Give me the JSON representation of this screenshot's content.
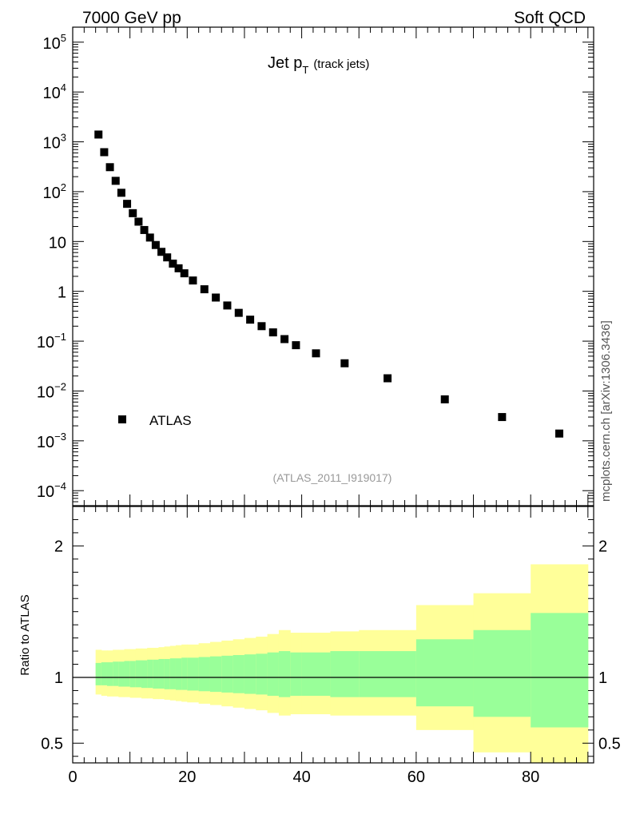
{
  "header": {
    "energy_label": "7000 GeV pp",
    "process_label": "Soft QCD",
    "side_label": "mcplots.cern.ch [arXiv:1306.3436]"
  },
  "chart_data": [
    {
      "type": "scatter",
      "panel": "main",
      "title_main": "Jet p",
      "title_sub": "T",
      "title_note": "(track jets)",
      "yscale": "log",
      "ylim": [
        5e-05,
        200000
      ],
      "xlim": [
        0,
        91
      ],
      "ytick_labels": [
        {
          "value": 100000,
          "base": "10",
          "exp": "5"
        },
        {
          "value": 10000,
          "base": "10",
          "exp": "4"
        },
        {
          "value": 1000,
          "base": "10",
          "exp": "3"
        },
        {
          "value": 100,
          "base": "10",
          "exp": "2"
        },
        {
          "value": 10,
          "base": "10",
          "exp": ""
        },
        {
          "value": 1,
          "base": "1",
          "exp": ""
        },
        {
          "value": 0.1,
          "base": "10",
          "exp": "−1"
        },
        {
          "value": 0.01,
          "base": "10",
          "exp": "−2"
        },
        {
          "value": 0.001,
          "base": "10",
          "exp": "−3"
        },
        {
          "value": 0.0001,
          "base": "10",
          "exp": "−4"
        }
      ],
      "series": [
        {
          "name": "ATLAS",
          "marker": "square",
          "color": "#000000",
          "x": [
            4.5,
            5.5,
            6.5,
            7.5,
            8.5,
            9.5,
            10.5,
            11.5,
            12.5,
            13.5,
            14.5,
            15.5,
            16.5,
            17.5,
            18.5,
            19.5,
            21,
            23,
            25,
            27,
            29,
            31,
            33,
            35,
            37,
            39,
            42.5,
            47.5,
            55,
            65,
            75,
            85
          ],
          "y": [
            1400,
            620,
            310,
            165,
            95,
            57,
            37,
            25,
            17,
            12,
            8.5,
            6.2,
            4.8,
            3.6,
            2.9,
            2.3,
            1.65,
            1.1,
            0.75,
            0.52,
            0.37,
            0.27,
            0.2,
            0.15,
            0.11,
            0.083,
            0.057,
            0.036,
            0.018,
            0.0068,
            0.003,
            0.0014
          ]
        }
      ],
      "legend": {
        "label": "ATLAS",
        "position": "lower-left"
      },
      "watermark": "(ATLAS_2011_I919017)"
    },
    {
      "type": "area",
      "panel": "ratio",
      "ylabel": "Ratio to ATLAS",
      "xlim": [
        0,
        91
      ],
      "ylim": [
        0.35,
        2.3
      ],
      "ytick_labels": [
        {
          "value": 2,
          "label": "2"
        },
        {
          "value": 1,
          "label": "1"
        },
        {
          "value": 0.5,
          "label": "0.5"
        }
      ],
      "xtick_labels": [
        {
          "value": 0,
          "label": "0"
        },
        {
          "value": 20,
          "label": "20"
        },
        {
          "value": 40,
          "label": "40"
        },
        {
          "value": 60,
          "label": "60"
        },
        {
          "value": 80,
          "label": "80"
        }
      ],
      "reference_line": 1,
      "bin_edges": [
        4,
        5,
        6,
        7,
        8,
        9,
        10,
        11,
        12,
        13,
        14,
        15,
        16,
        17,
        18,
        19,
        20,
        22,
        24,
        26,
        28,
        30,
        32,
        34,
        36,
        38,
        40,
        45,
        50,
        60,
        70,
        80,
        90
      ],
      "stat_band_color": "#99ff99",
      "total_band_color": "#ffff99",
      "stat_up": [
        1.11,
        1.115,
        1.115,
        1.12,
        1.12,
        1.125,
        1.125,
        1.13,
        1.13,
        1.135,
        1.135,
        1.14,
        1.14,
        1.145,
        1.145,
        1.15,
        1.15,
        1.155,
        1.16,
        1.165,
        1.17,
        1.175,
        1.18,
        1.19,
        1.2,
        1.19,
        1.19,
        1.2,
        1.2,
        1.29,
        1.36,
        1.49
      ],
      "stat_dn": [
        0.94,
        0.94,
        0.935,
        0.935,
        0.93,
        0.93,
        0.925,
        0.925,
        0.92,
        0.92,
        0.915,
        0.915,
        0.91,
        0.91,
        0.905,
        0.905,
        0.9,
        0.895,
        0.89,
        0.885,
        0.88,
        0.875,
        0.87,
        0.86,
        0.85,
        0.86,
        0.86,
        0.85,
        0.85,
        0.78,
        0.7,
        0.62
      ],
      "total_up": [
        1.21,
        1.205,
        1.205,
        1.21,
        1.21,
        1.215,
        1.215,
        1.22,
        1.22,
        1.225,
        1.225,
        1.23,
        1.235,
        1.24,
        1.245,
        1.25,
        1.25,
        1.26,
        1.27,
        1.28,
        1.29,
        1.3,
        1.31,
        1.33,
        1.36,
        1.34,
        1.34,
        1.35,
        1.36,
        1.55,
        1.64,
        1.86
      ],
      "total_dn": [
        0.87,
        0.86,
        0.855,
        0.855,
        0.85,
        0.85,
        0.845,
        0.845,
        0.84,
        0.84,
        0.835,
        0.835,
        0.83,
        0.825,
        0.82,
        0.815,
        0.81,
        0.8,
        0.79,
        0.78,
        0.77,
        0.76,
        0.75,
        0.73,
        0.71,
        0.72,
        0.72,
        0.71,
        0.71,
        0.6,
        0.43,
        0.3
      ]
    }
  ]
}
